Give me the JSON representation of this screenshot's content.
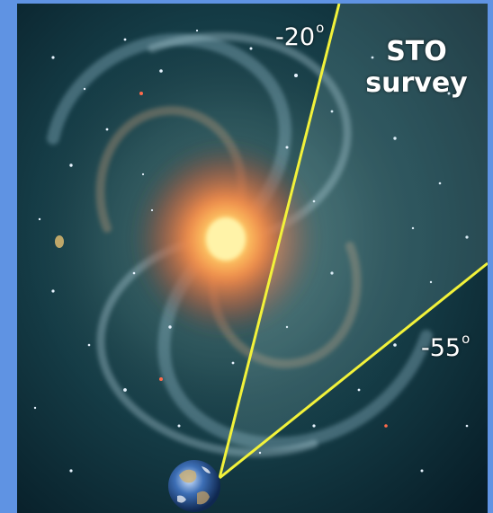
{
  "diagram": {
    "survey_label_line1": "STO",
    "survey_label_line2": "survey",
    "angle_upper": "-20",
    "angle_lower": "-55",
    "degree_symbol": "o",
    "line_color": "#f2f23a",
    "frame_color": "#5f93e3",
    "observer_icon": "earth-icon",
    "background_image": "spiral-galaxy"
  }
}
